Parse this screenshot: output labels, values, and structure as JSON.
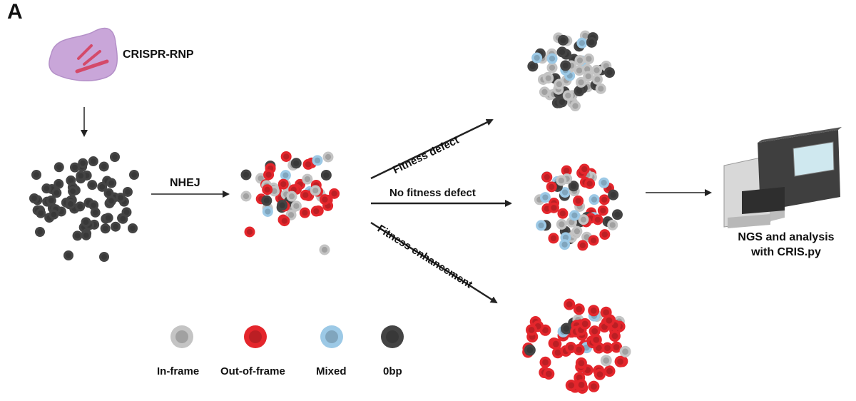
{
  "panel_label": "A",
  "rnp_label": "CRISPR-RNP",
  "nhej_label": "NHEJ",
  "arrows": {
    "defect": "Fitness defect",
    "none": "No fitness defect",
    "enhance": "Fitness enhancement"
  },
  "sequencer_label": {
    "line1": "NGS and analysis",
    "line2": "with CRIS.py"
  },
  "legend": [
    {
      "label": "In-frame",
      "color": "#c4c4c4"
    },
    {
      "label": "Out-of-frame",
      "color": "#e4262c"
    },
    {
      "label": "Mixed",
      "color": "#9cc9e6"
    },
    {
      "label": "0bp",
      "color": "#444444"
    }
  ],
  "colors": {
    "in_frame": "#c4c4c4",
    "out_of_frame": "#e4262c",
    "mixed": "#9cc9e6",
    "zero_bp": "#444444",
    "rnp_blob": "#c9a6d9"
  }
}
